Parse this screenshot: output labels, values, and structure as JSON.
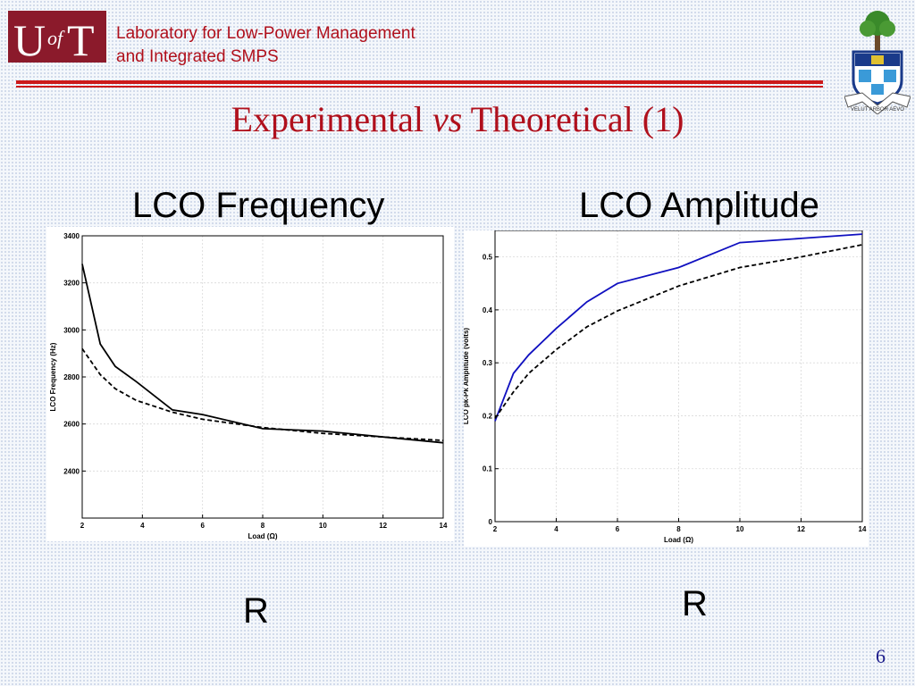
{
  "header": {
    "logo_text": "UofT",
    "lab_line1": "Laboratory for Low-Power Management",
    "lab_line2": "and Integrated SMPS",
    "crest_motto": "VELUT ARBOR AEVO",
    "rule_color": "#cc1a1a"
  },
  "slide": {
    "title_part1": "Experimental ",
    "title_vs": "vs",
    "title_part2": " Theoretical (1)",
    "page_number": "6",
    "title_color": "#b0101c"
  },
  "charts": {
    "freq_heading": "LCO Frequency",
    "amp_heading": "LCO Amplitude",
    "freq_r_label": "R",
    "amp_r_label": "R"
  },
  "chart_data": [
    {
      "type": "line",
      "title": "",
      "xlabel": "Load (Ω)",
      "ylabel": "LCO Frequency (Hz)",
      "xlim": [
        2,
        14
      ],
      "ylim": [
        2200,
        3400
      ],
      "xticks": [
        2,
        4,
        6,
        8,
        10,
        12,
        14
      ],
      "yticks": [
        2400,
        2600,
        2800,
        3000,
        3200,
        3400
      ],
      "grid": true,
      "series": [
        {
          "style": "solid",
          "color": "#000000",
          "x": [
            2,
            2.6,
            3.1,
            3.8,
            5,
            6,
            8,
            10,
            12,
            14
          ],
          "y": [
            3280,
            2940,
            2845,
            2780,
            2660,
            2640,
            2580,
            2570,
            2545,
            2520
          ]
        },
        {
          "style": "dashed",
          "color": "#000000",
          "x": [
            2,
            2.6,
            3.1,
            3.8,
            5,
            6,
            8,
            10,
            12,
            14
          ],
          "y": [
            2920,
            2810,
            2750,
            2700,
            2650,
            2620,
            2585,
            2560,
            2545,
            2530
          ]
        }
      ]
    },
    {
      "type": "line",
      "title": "",
      "xlabel": "Load (Ω)",
      "ylabel": "LCO pk-Pk Amplitude (volts)",
      "xlim": [
        2,
        14
      ],
      "ylim": [
        0,
        0.55
      ],
      "xticks": [
        2,
        4,
        6,
        8,
        10,
        12,
        14
      ],
      "yticks": [
        0,
        0.1,
        0.2,
        0.3,
        0.4,
        0.5
      ],
      "grid": true,
      "series": [
        {
          "style": "solid",
          "color": "#1010c0",
          "x": [
            2,
            2.6,
            3.1,
            4,
            5,
            6,
            8,
            10,
            12,
            14
          ],
          "y": [
            0.19,
            0.28,
            0.315,
            0.365,
            0.415,
            0.45,
            0.48,
            0.527,
            0.535,
            0.543
          ]
        },
        {
          "style": "dashed",
          "color": "#000000",
          "x": [
            2,
            2.6,
            3.1,
            4,
            5,
            6,
            8,
            10,
            12,
            14
          ],
          "y": [
            0.195,
            0.245,
            0.28,
            0.325,
            0.368,
            0.398,
            0.445,
            0.48,
            0.5,
            0.523
          ]
        }
      ]
    }
  ]
}
